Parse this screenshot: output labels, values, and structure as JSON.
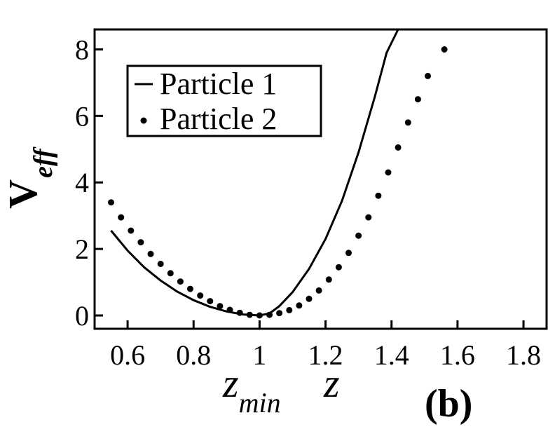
{
  "chart_data": {
    "type": "line",
    "panel_label": "(b)",
    "ylabel": {
      "main": "V",
      "subscript": "eff"
    },
    "xlabel": "z",
    "xmarker_label": {
      "main": "z",
      "subscript": "min"
    },
    "xlim": [
      0.5,
      1.87
    ],
    "ylim": [
      -0.4,
      8.6
    ],
    "x_ticks": [
      0.6,
      0.8,
      1,
      1.2,
      1.4,
      1.6,
      1.8
    ],
    "x_tick_labels": [
      "0.6",
      "0.8",
      "1",
      "1.2",
      "1.4",
      "1.6",
      "1.8"
    ],
    "y_ticks": [
      0,
      2,
      4,
      6,
      8
    ],
    "y_tick_labels": [
      "0",
      "2",
      "4",
      "6",
      "8"
    ],
    "grid": false,
    "legend_position": "top-left",
    "series": [
      {
        "name": "Particle 1",
        "style": "line",
        "color": "#000000",
        "points": [
          [
            0.55,
            2.55
          ],
          [
            0.6,
            1.95
          ],
          [
            0.65,
            1.45
          ],
          [
            0.7,
            1.05
          ],
          [
            0.75,
            0.72
          ],
          [
            0.8,
            0.46
          ],
          [
            0.85,
            0.26
          ],
          [
            0.9,
            0.12
          ],
          [
            0.95,
            0.03
          ],
          [
            1.0,
            0.0
          ],
          [
            1.03,
            0.06
          ],
          [
            1.06,
            0.28
          ],
          [
            1.1,
            0.7
          ],
          [
            1.15,
            1.4
          ],
          [
            1.2,
            2.3
          ],
          [
            1.25,
            3.45
          ],
          [
            1.3,
            4.9
          ],
          [
            1.35,
            6.6
          ],
          [
            1.385,
            7.9
          ],
          [
            1.42,
            8.6
          ]
        ]
      },
      {
        "name": "Particle 2",
        "style": "dots",
        "color": "#000000",
        "points": [
          [
            0.55,
            3.4
          ],
          [
            0.58,
            2.95
          ],
          [
            0.61,
            2.55
          ],
          [
            0.64,
            2.2
          ],
          [
            0.67,
            1.85
          ],
          [
            0.7,
            1.55
          ],
          [
            0.73,
            1.27
          ],
          [
            0.76,
            1.02
          ],
          [
            0.79,
            0.8
          ],
          [
            0.82,
            0.6
          ],
          [
            0.85,
            0.43
          ],
          [
            0.88,
            0.28
          ],
          [
            0.91,
            0.17
          ],
          [
            0.94,
            0.08
          ],
          [
            0.97,
            0.02
          ],
          [
            1.0,
            0.0
          ],
          [
            1.03,
            0.02
          ],
          [
            1.06,
            0.07
          ],
          [
            1.09,
            0.16
          ],
          [
            1.12,
            0.3
          ],
          [
            1.15,
            0.5
          ],
          [
            1.18,
            0.75
          ],
          [
            1.21,
            1.08
          ],
          [
            1.24,
            1.45
          ],
          [
            1.27,
            1.88
          ],
          [
            1.3,
            2.4
          ],
          [
            1.33,
            2.95
          ],
          [
            1.36,
            3.6
          ],
          [
            1.39,
            4.3
          ],
          [
            1.42,
            5.05
          ],
          [
            1.45,
            5.8
          ],
          [
            1.48,
            6.5
          ],
          [
            1.51,
            7.2
          ],
          [
            1.56,
            8.0
          ]
        ]
      }
    ]
  }
}
